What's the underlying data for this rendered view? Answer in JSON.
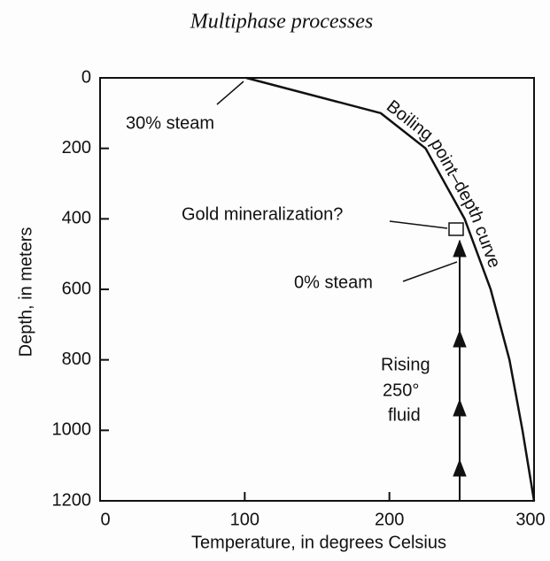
{
  "chart_data": {
    "type": "line",
    "title": "Multiphase processes",
    "x_label": "Temperature, in degrees Celsius",
    "y_label": "Depth, in meters",
    "x": [
      101,
      194,
      225,
      252,
      270,
      283,
      292,
      300
    ],
    "values": [
      0,
      100,
      200,
      400,
      600,
      800,
      1000,
      1200
    ],
    "color": "#111111",
    "xlim": [
      0,
      300
    ],
    "xticks": [
      0,
      100,
      200,
      300
    ],
    "ylim": [
      0,
      1200
    ],
    "yticks": [
      0,
      200,
      400,
      600,
      800,
      1000,
      1200
    ],
    "y_inverted": true,
    "annotations": [
      "Boiling point–depth curve",
      "30% steam",
      "Gold mineralization?",
      "0% steam",
      "Rising",
      "250°",
      "fluid"
    ]
  }
}
